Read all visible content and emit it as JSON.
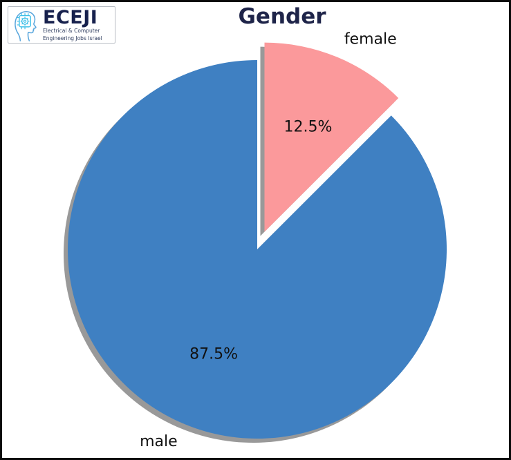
{
  "logo": {
    "name": "ECEJI",
    "tagline_line1": "Electrical  &  Computer",
    "tagline_line2": "Engineering Jobs Israel"
  },
  "chart_data": {
    "type": "pie",
    "title": "Gender",
    "categories": [
      "male",
      "female"
    ],
    "values": [
      87.5,
      12.5
    ],
    "pct_labels": [
      "87.5%",
      "12.5%"
    ],
    "colors": [
      "#3f80c2",
      "#fb999b"
    ],
    "shadow": true,
    "shadow_color": "#999999",
    "start_angle": 90,
    "counterclock": true,
    "explode": [
      0,
      0.1
    ],
    "legend": "none",
    "title_color": "#1e2449",
    "text_color": "#111111"
  }
}
